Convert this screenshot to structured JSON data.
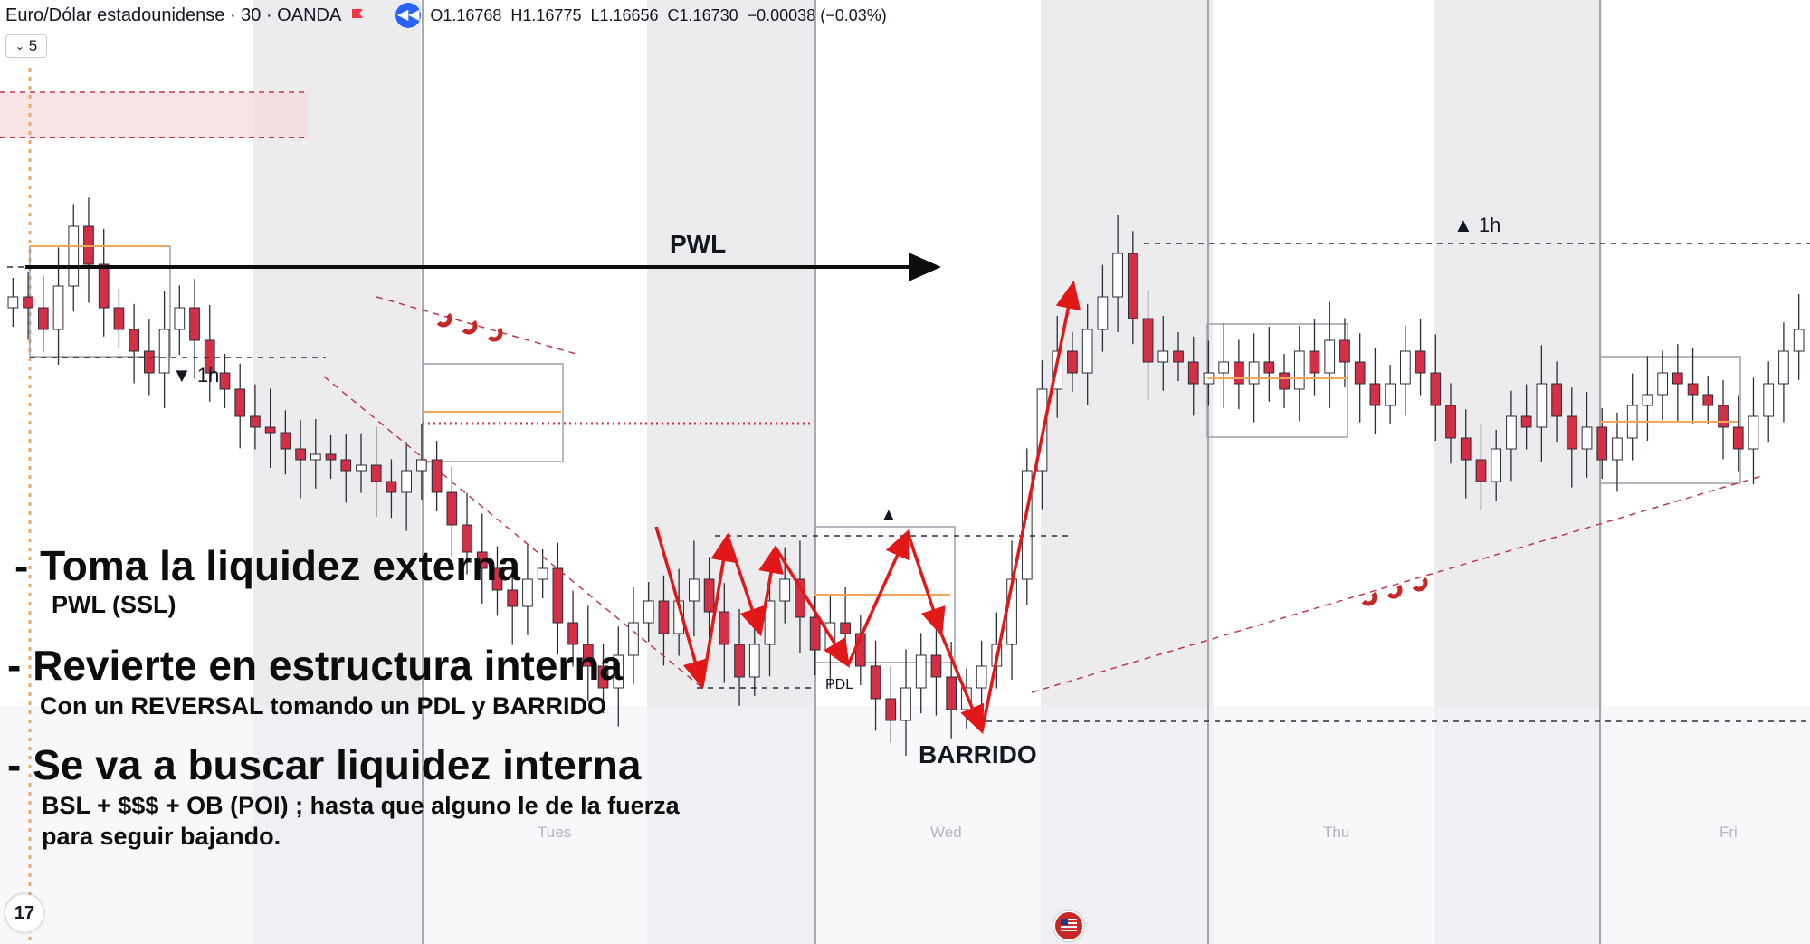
{
  "header": {
    "symbol": "Euro/Dólar estadounidense · 30 · OANDA",
    "open": "O1.16768",
    "high": "H1.16775",
    "low": "L1.16656",
    "close": "C1.16730",
    "change": "−0.00038 (−0.03%)"
  },
  "interval_selector": {
    "label": "5"
  },
  "labels": {
    "pwl": "PWL",
    "pdl": "PDL",
    "barrido": "BARRIDO",
    "tf_down": "▼ 1h",
    "tf_up": "▲ 1h",
    "up_marker": "▲"
  },
  "annotations": {
    "line1": "- Toma la liquidez externa",
    "line1_sub": "PWL (SSL)",
    "line2": "- Revierte en estructura interna",
    "line2_sub": "Con un REVERSAL tomando un PDL y BARRIDO",
    "line3": "- Se va a buscar liquidez interna",
    "line3_sub1": "BSL + $$$ + OB (POI) ; hasta que alguno le de la fuerza",
    "line3_sub2": "para seguir bajando."
  },
  "days": [
    "Tues",
    "Wed",
    "Thu",
    "Fri"
  ],
  "logo": {
    "text": "17"
  },
  "colors": {
    "bull": "#ffffff",
    "bear": "#d32f45",
    "arrow": "#e01818",
    "dash": "#c0394b",
    "ob": "#f5a65b"
  },
  "chart_data": {
    "type": "candlestick",
    "symbol": "EURUSD",
    "timeframe": "30",
    "x_categories": [
      "Tues",
      "Wed",
      "Thu",
      "Fri"
    ],
    "ohlc_last": {
      "open": 1.16768,
      "high": 1.16775,
      "low": 1.16656,
      "close": 1.1673
    },
    "close_trace": [
      0.72,
      0.7,
      0.66,
      0.74,
      0.85,
      0.78,
      0.7,
      0.66,
      0.62,
      0.58,
      0.66,
      0.7,
      0.64,
      0.58,
      0.55,
      0.5,
      0.48,
      0.47,
      0.44,
      0.42,
      0.43,
      0.42,
      0.4,
      0.41,
      0.38,
      0.36,
      0.4,
      0.42,
      0.36,
      0.3,
      0.25,
      0.22,
      0.18,
      0.15,
      0.2,
      0.22,
      0.12,
      0.08,
      0.04,
      0.0,
      0.06,
      0.12,
      0.16,
      0.1,
      0.16,
      0.2,
      0.14,
      0.08,
      0.02,
      0.08,
      0.16,
      0.2,
      0.13,
      0.07,
      0.12,
      0.1,
      0.04,
      -0.02,
      -0.06,
      0.0,
      0.06,
      0.02,
      -0.04,
      0.0,
      0.04,
      0.08,
      0.2,
      0.4,
      0.55,
      0.62,
      0.58,
      0.66,
      0.72,
      0.8,
      0.68,
      0.6,
      0.62,
      0.6,
      0.56,
      0.58,
      0.6,
      0.56,
      0.6,
      0.58,
      0.55,
      0.62,
      0.58,
      0.64,
      0.6,
      0.56,
      0.52,
      0.56,
      0.62,
      0.58,
      0.52,
      0.46,
      0.42,
      0.38,
      0.44,
      0.5,
      0.48,
      0.56,
      0.5,
      0.44,
      0.48,
      0.42,
      0.46,
      0.52,
      0.54,
      0.58,
      0.56,
      0.54,
      0.52,
      0.48,
      0.44,
      0.5,
      0.56,
      0.62,
      0.66
    ]
  }
}
